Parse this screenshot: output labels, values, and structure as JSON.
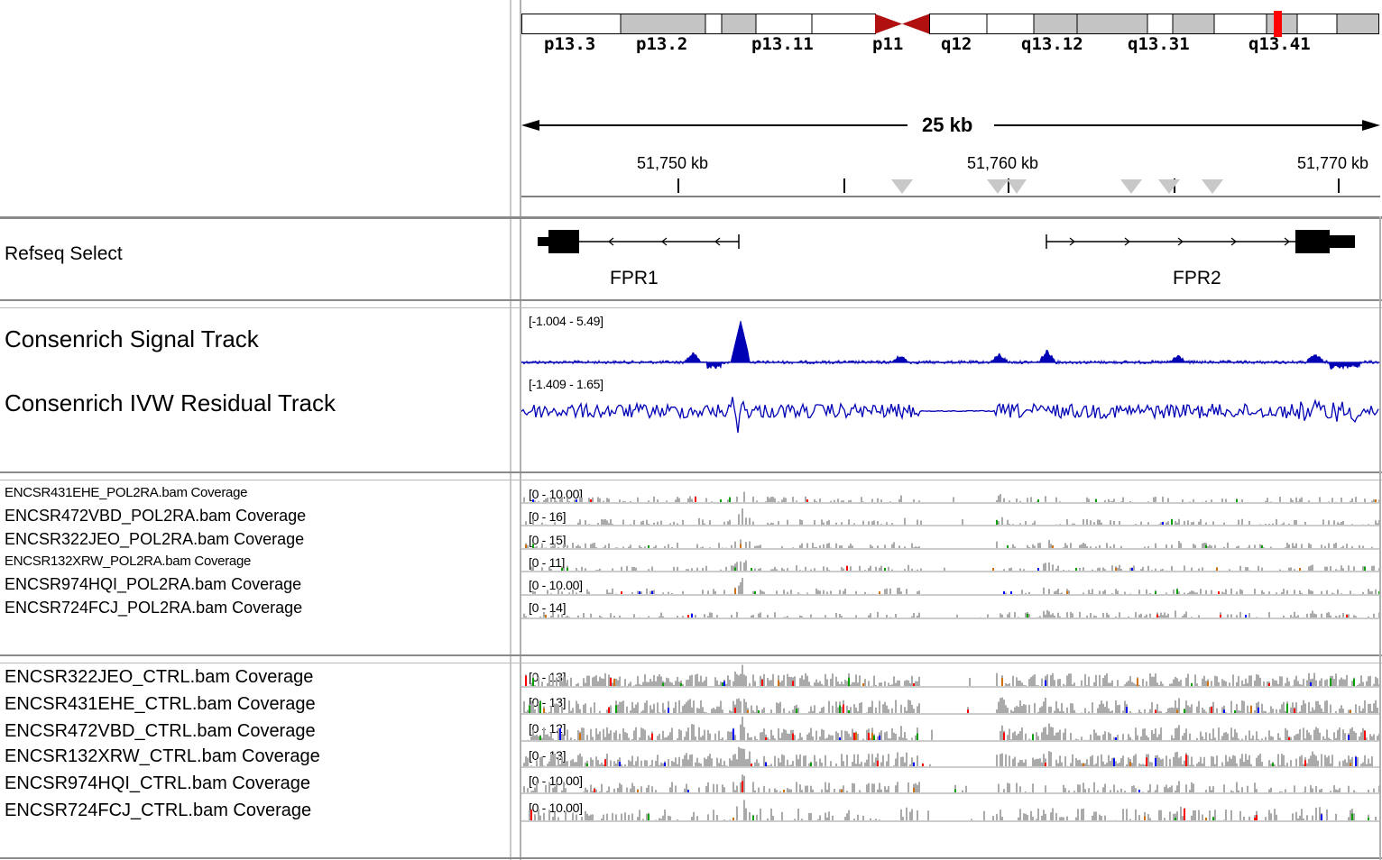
{
  "ideogram": {
    "bands": [
      "p13.3",
      "p13.2",
      "p13.11",
      "p11",
      "q12",
      "q13.12",
      "q13.31",
      "q13.41"
    ]
  },
  "ruler": {
    "span": "25 kb",
    "ticks": [
      "51,750 kb",
      "51,760 kb",
      "51,770 kb"
    ]
  },
  "tracks": {
    "refseq": {
      "name": "Refseq Select",
      "genes": [
        "FPR1",
        "FPR2"
      ]
    },
    "consenrich": [
      {
        "name": "Consenrich Signal Track",
        "range": "[-1.004 - 5.49]",
        "color": "#0000b4"
      },
      {
        "name": "Consenrich IVW Residual Track",
        "range": "[-1.409 - 1.65]",
        "color": "#0000b4"
      }
    ],
    "pol2ra": [
      {
        "name": "ENCSR431EHE_POL2RA.bam Coverage",
        "range": "[0 - 10.00]"
      },
      {
        "name": "ENCSR472VBD_POL2RA.bam Coverage",
        "range": "[0 - 16]"
      },
      {
        "name": "ENCSR322JEO_POL2RA.bam Coverage",
        "range": "[0 - 15]"
      },
      {
        "name": "ENCSR132XRW_POL2RA.bam Coverage",
        "range": "[0 - 11]"
      },
      {
        "name": "ENCSR974HQI_POL2RA.bam Coverage",
        "range": "[0 - 10.00]"
      },
      {
        "name": "ENCSR724FCJ_POL2RA.bam Coverage",
        "range": "[0 - 14]"
      }
    ],
    "ctrl": [
      {
        "name": "ENCSR322JEO_CTRL.bam Coverage",
        "range": "[0 - 13]"
      },
      {
        "name": "ENCSR431EHE_CTRL.bam Coverage",
        "range": "[0 - 13]"
      },
      {
        "name": "ENCSR472VBD_CTRL.bam Coverage",
        "range": "[0 - 12]"
      },
      {
        "name": "ENCSR132XRW_CTRL.bam Coverage",
        "range": "[0 - 13]"
      },
      {
        "name": "ENCSR974HQI_CTRL.bam Coverage",
        "range": "[0 - 10.00]"
      },
      {
        "name": "ENCSR724FCJ_CTRL.bam Coverage",
        "range": "[0 - 10.00]"
      }
    ]
  },
  "colors": {
    "coverage": "#aaaaaa",
    "signal": "#0000b4",
    "centromere": "#b01010",
    "highlight": "#ff0000",
    "mismatch_a": "#00a000",
    "mismatch_c": "#0000ff",
    "mismatch_g": "#d17105",
    "mismatch_t": "#ff0000"
  }
}
